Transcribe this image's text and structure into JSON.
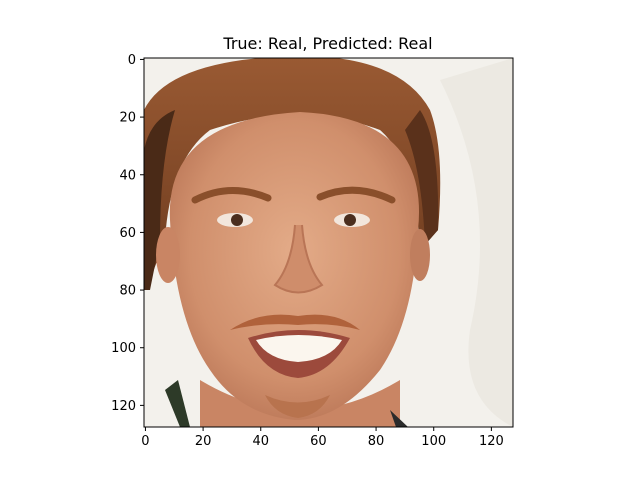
{
  "chart_data": {
    "type": "image",
    "title": "True: Real, Predicted: Real",
    "image_description_subject": "face",
    "x_ticks": [
      0,
      20,
      40,
      60,
      80,
      100,
      120
    ],
    "y_ticks": [
      0,
      20,
      40,
      60,
      80,
      100,
      120
    ],
    "xlim": [
      -0.5,
      127.5
    ],
    "ylim": [
      127.5,
      -0.5
    ],
    "y_axis_inverted": true,
    "grid": false,
    "colors": {
      "background": "#f3f1ec",
      "skin": "#d79a77",
      "skin_shadow": "#b97556",
      "hair": "#8a4f2b",
      "hair_dark": "#4a2a17",
      "teeth": "#fbf6ee",
      "lips": "#b85e4c",
      "eyes": "#4b2e1e",
      "shirt": "#2d3a28"
    }
  }
}
